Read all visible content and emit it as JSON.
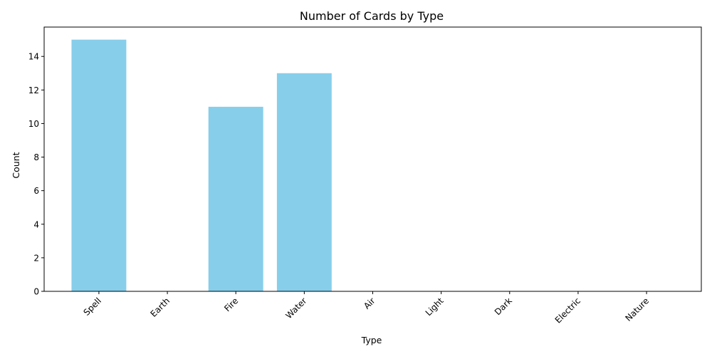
{
  "chart_data": {
    "type": "bar",
    "title": "Number of Cards by Type",
    "xlabel": "Type",
    "ylabel": "Count",
    "categories": [
      "Spell",
      "Earth",
      "Fire",
      "Water",
      "Air",
      "Light",
      "Dark",
      "Electric",
      "Nature"
    ],
    "values": [
      15,
      0,
      11,
      13,
      0,
      0,
      0,
      0,
      0
    ],
    "ylim": [
      0,
      15.75
    ],
    "yticks": [
      0,
      2,
      4,
      6,
      8,
      10,
      12,
      14
    ],
    "xtick_rotation": 45,
    "grid": false,
    "bar_color": "#87CEEB"
  }
}
